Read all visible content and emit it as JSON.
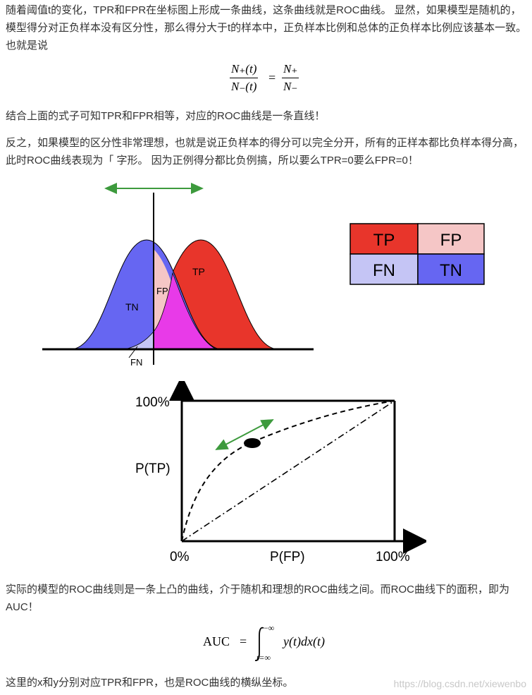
{
  "para1": "随着阈值t的变化，TPR和FPR在坐标图上形成一条曲线，这条曲线就是ROC曲线。 显然，如果模型是随机的，模型得分对正负样本没有区分性，那么得分大于t的样本中，正负样本比例和总体的正负样本比例应该基本一致。 也就是说",
  "formula1": {
    "lhs_num": "N₊(t)",
    "lhs_den": "N₋(t)",
    "eq": "=",
    "rhs_num": "N₊",
    "rhs_den": "N₋"
  },
  "para2": "结合上面的式子可知TPR和FPR相等，对应的ROC曲线是一条直线！",
  "para3": "反之，如果模型的区分性非常理想，也就是说正负样本的得分可以完全分开，所有的正样本都比负样本得分高，此时ROC曲线表现为「 字形。 因为正例得分都比负例搞，所以要么TPR=0要么FPR=0！",
  "distribution": {
    "labels": {
      "tn": "TN",
      "fp": "FP",
      "tp": "TP",
      "fn": "FN"
    }
  },
  "legend_grid": {
    "cells": [
      {
        "label": "TP",
        "color": "#e8352b"
      },
      {
        "label": "FP",
        "color": "#f5c6c6"
      },
      {
        "label": "FN",
        "color": "#c5c5f5"
      },
      {
        "label": "TN",
        "color": "#6666f2"
      }
    ]
  },
  "roc": {
    "y_top_label": "100%",
    "y_axis_label": "P(TP)",
    "x_origin_label": "0%",
    "x_axis_label": "P(FP)",
    "x_end_label": "100%"
  },
  "para4": "实际的模型的ROC曲线则是一条上凸的曲线，介于随机和理想的ROC曲线之间。而ROC曲线下的面积，即为AUC！",
  "formula2": {
    "lhs": "AUC",
    "eq": "=",
    "upper": "−∞",
    "lower": "t=∞",
    "integrand": "y(t)dx(t)"
  },
  "para5": "这里的x和y分别对应TPR和FPR，也是ROC曲线的横纵坐标。",
  "watermark": "https://blog.csdn.net/xiewenbo",
  "colors": {
    "arrow_green": "#3d9a3d",
    "tn_blue": "#6666f2",
    "tp_red": "#e8352b",
    "overlap_magenta": "#e83ae8",
    "fp_pink": "#f5c6c6",
    "fn_lavender": "#c5c5f5"
  }
}
